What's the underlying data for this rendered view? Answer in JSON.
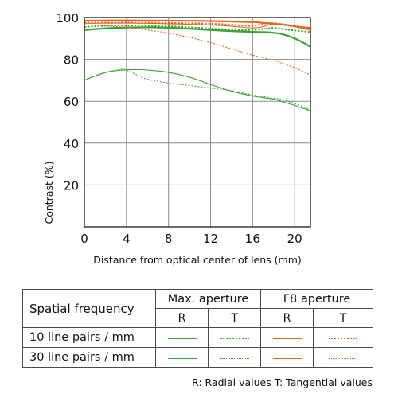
{
  "chart_data": {
    "type": "line",
    "xlabel": "Distance from optical center of lens (mm)",
    "ylabel": "Contrast (%)",
    "xlim": [
      0,
      21.5
    ],
    "ylim": [
      0,
      100
    ],
    "xticks": [
      0,
      4,
      8,
      12,
      16,
      20
    ],
    "yticks": [
      20,
      40,
      60,
      80,
      100
    ],
    "grid": true,
    "colors": {
      "max_aperture": "#3aa335",
      "f8_aperture": "#e8651f"
    },
    "series": [
      {
        "name": "Max. aperture 10 line pairs / mm R",
        "color": "#3aa335",
        "style": "solid",
        "width": 2.2,
        "x": [
          0,
          2,
          4,
          6,
          8,
          10,
          12,
          14,
          16,
          17,
          18,
          19,
          20,
          21,
          21.5
        ],
        "y": [
          94,
          94.8,
          95.2,
          95.3,
          95.1,
          94.6,
          94,
          93.5,
          93.1,
          93,
          92.7,
          91.8,
          90,
          87.5,
          86
        ]
      },
      {
        "name": "Max. aperture 10 line pairs / mm T",
        "color": "#3aa335",
        "style": "dotted",
        "width": 2,
        "x": [
          0,
          2,
          4,
          6,
          8,
          10,
          12,
          14,
          16,
          18,
          19,
          20,
          21,
          21.5
        ],
        "y": [
          95.5,
          96,
          96.2,
          96.1,
          95.8,
          95.3,
          94.7,
          94.2,
          94,
          95,
          94.4,
          93.8,
          93.3,
          93
        ]
      },
      {
        "name": "F8 aperture 10 line pairs / mm R",
        "color": "#e8651f",
        "style": "solid",
        "width": 2.2,
        "x": [
          0,
          4,
          8,
          12,
          16,
          17,
          18,
          19,
          20,
          21,
          21.5
        ],
        "y": [
          98.5,
          98.6,
          98.5,
          98.3,
          97.8,
          97.4,
          97,
          96.5,
          95.8,
          95.2,
          95
        ]
      },
      {
        "name": "F8 aperture 10 line pairs / mm T",
        "color": "#e8651f",
        "style": "dotted",
        "width": 2,
        "x": [
          0,
          4,
          8,
          12,
          14,
          16,
          17,
          18,
          19,
          20,
          21,
          21.5
        ],
        "y": [
          97.5,
          97.6,
          97.4,
          97,
          96.5,
          96,
          97,
          97.3,
          96.7,
          95.8,
          94.8,
          94.5
        ]
      },
      {
        "name": "Max. aperture 30 line pairs / mm R",
        "color": "#3aa335",
        "style": "solid",
        "width": 1.1,
        "x": [
          0,
          1,
          2,
          3,
          4,
          5,
          6,
          8,
          10,
          12,
          14,
          16,
          18,
          19,
          20,
          21,
          21.5
        ],
        "y": [
          70,
          72,
          73.7,
          74.6,
          75,
          75.1,
          74.9,
          73.8,
          71.5,
          68,
          64.8,
          62.5,
          61,
          59.5,
          58,
          56.3,
          55.5
        ]
      },
      {
        "name": "Max. aperture 30 line pairs / mm T",
        "color": "#3aa335",
        "style": "dotted",
        "width": 1.1,
        "x": [
          0,
          1,
          2,
          3,
          3.8,
          5,
          6,
          8,
          10,
          12,
          14,
          16,
          18,
          19,
          20,
          21,
          21.5
        ],
        "y": [
          70,
          72.2,
          73.8,
          74.8,
          75.2,
          72.5,
          70.5,
          68.7,
          67.5,
          66.3,
          65,
          63,
          61.5,
          60.5,
          59,
          57,
          56
        ]
      },
      {
        "name": "F8 aperture 30 line pairs / mm R",
        "color": "#e8651f",
        "style": "solid",
        "width": 1.1,
        "x": [
          0,
          4,
          8,
          12,
          14,
          16,
          17,
          18,
          19,
          20,
          21,
          21.5
        ],
        "y": [
          97.2,
          97.3,
          97,
          96.4,
          95.8,
          95,
          95.6,
          97,
          96.6,
          95.6,
          94.5,
          94
        ]
      },
      {
        "name": "F8 aperture 30 line pairs / mm T",
        "color": "#e8651f",
        "style": "dotted",
        "width": 1.1,
        "x": [
          0,
          2,
          4,
          6,
          8,
          10,
          12,
          14,
          16,
          18,
          20,
          21.5
        ],
        "y": [
          96.5,
          96,
          95.2,
          94,
          92.5,
          90.5,
          88,
          85,
          82,
          79.5,
          76,
          72.5
        ]
      }
    ]
  },
  "table": {
    "header_label": "Spatial frequency",
    "groups": [
      "Max. aperture",
      "F8 aperture"
    ],
    "subheaders": [
      "R",
      "T",
      "R",
      "T"
    ],
    "rows": [
      {
        "label": "10 line pairs / mm"
      },
      {
        "label": "30 line pairs / mm"
      }
    ]
  },
  "footnote": "R: Radial values  T: Tangential values"
}
